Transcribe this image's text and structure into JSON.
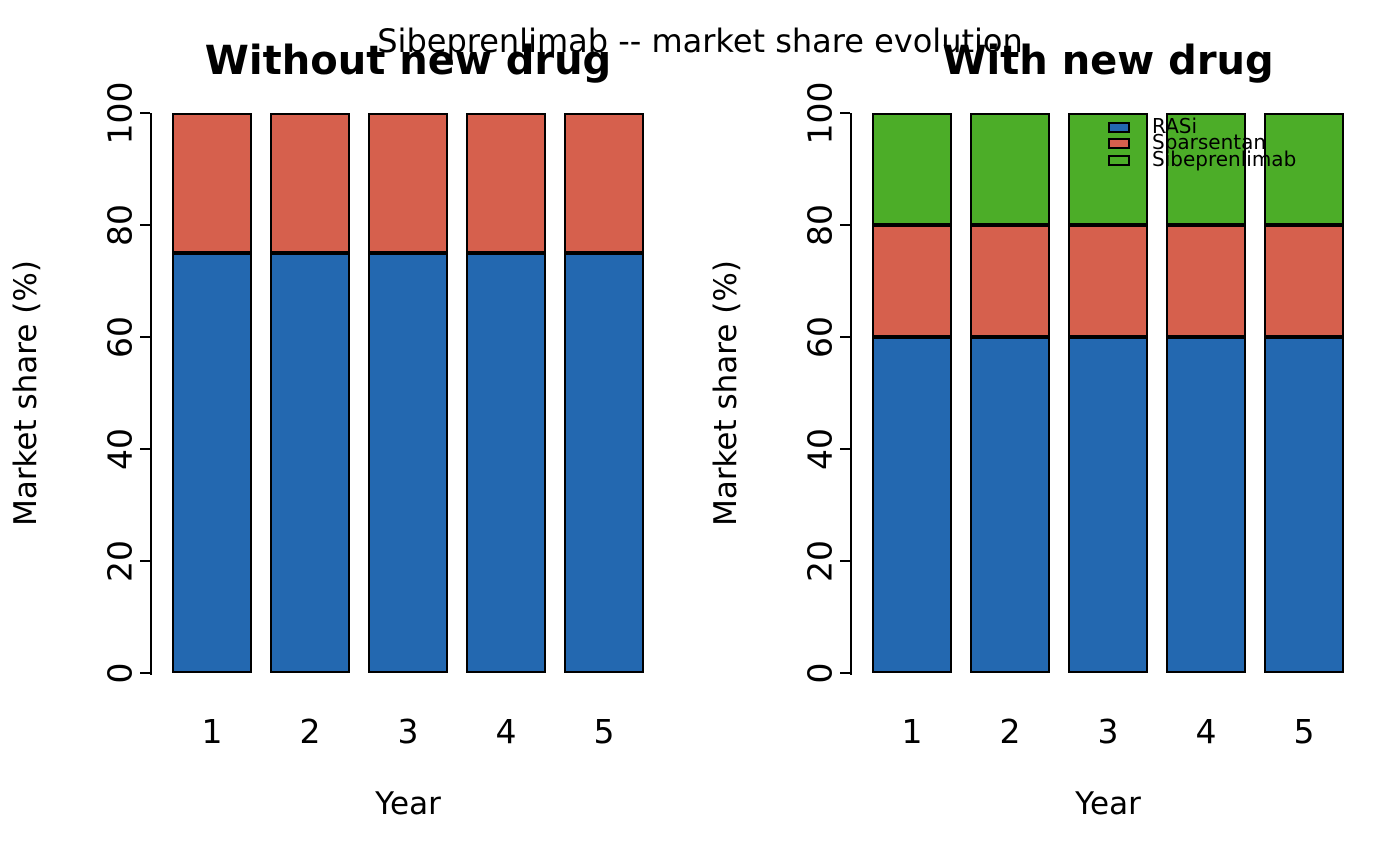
{
  "chart_data": {
    "type": "bar",
    "stacked": true,
    "title": "Sibeprenlimab -- market share evolution",
    "categories": [
      "1",
      "2",
      "3",
      "4",
      "5"
    ],
    "xlabel": "Year",
    "ylabel": "Market share (%)",
    "ylim": [
      0,
      100
    ],
    "yticks": [
      0,
      20,
      40,
      60,
      80,
      100
    ],
    "grid": false,
    "panels": [
      {
        "title": "Without new drug",
        "series": [
          {
            "name": "RASi",
            "color": "#2368B0",
            "values": [
              75,
              75,
              75,
              75,
              75
            ]
          },
          {
            "name": "Sparsentan",
            "color": "#D6604D",
            "values": [
              25,
              25,
              25,
              25,
              25
            ]
          },
          {
            "name": "Sibeprenlimab",
            "color": "#4CAD28",
            "values": [
              0,
              0,
              0,
              0,
              0
            ]
          }
        ]
      },
      {
        "title": "With new drug",
        "series": [
          {
            "name": "RASi",
            "color": "#2368B0",
            "values": [
              60,
              60,
              60,
              60,
              60
            ]
          },
          {
            "name": "Sparsentan",
            "color": "#D6604D",
            "values": [
              20,
              20,
              20,
              20,
              20
            ]
          },
          {
            "name": "Sibeprenlimab",
            "color": "#4CAD28",
            "values": [
              20,
              20,
              20,
              20,
              20
            ]
          }
        ]
      }
    ],
    "legend": {
      "position": "top-right-inside-right-panel",
      "entries": [
        {
          "label": "RASi",
          "color": "#2368B0"
        },
        {
          "label": "Sparsentan",
          "color": "#D6604D"
        },
        {
          "label": "Sibeprenlimab",
          "color": "#4CAD28"
        }
      ]
    },
    "colors": {
      "bar_border": "#000000",
      "background": "#ffffff"
    }
  }
}
